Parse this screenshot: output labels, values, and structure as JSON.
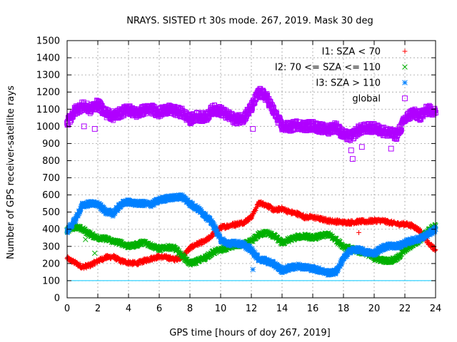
{
  "chart_data": {
    "type": "scatter",
    "title": "NRAYS. SISTED rt 30s mode. 267, 2019. Mask 30 deg",
    "xlabel": "GPS time [hours of doy 267, 2019]",
    "ylabel": "Number of GPS receiver-satellite rays",
    "xlim": [
      0,
      24
    ],
    "ylim": [
      0,
      1500
    ],
    "xticks": [
      0,
      2,
      4,
      6,
      8,
      10,
      12,
      14,
      16,
      18,
      20,
      22,
      24
    ],
    "yticks": [
      0,
      100,
      200,
      300,
      400,
      500,
      600,
      700,
      800,
      900,
      1000,
      1100,
      1200,
      1300,
      1400,
      1500
    ],
    "grid": true,
    "legend_position": "top-right",
    "reference_line": {
      "y": 100,
      "color": "#00c8ff"
    },
    "series": [
      {
        "name": "I1: SZA < 70",
        "marker": "plus",
        "color": "#ff0000",
        "x": [
          0,
          0.5,
          1,
          1.5,
          2,
          2.5,
          3,
          3.5,
          4,
          4.5,
          5,
          5.5,
          6,
          6.5,
          7,
          7.5,
          8,
          8.5,
          9,
          9.5,
          10,
          10.5,
          11,
          11.5,
          12,
          12.5,
          13,
          13.5,
          14,
          14.5,
          15,
          15.5,
          16,
          16.5,
          17,
          17.5,
          18,
          18.5,
          19,
          19.5,
          20,
          20.5,
          21,
          21.5,
          22,
          22.5,
          23,
          23.5,
          24
        ],
        "y": [
          230,
          205,
          180,
          190,
          215,
          235,
          240,
          215,
          205,
          200,
          215,
          230,
          240,
          235,
          225,
          240,
          290,
          315,
          330,
          370,
          410,
          420,
          430,
          440,
          470,
          555,
          540,
          510,
          520,
          500,
          490,
          470,
          470,
          460,
          450,
          445,
          440,
          440,
          445,
          445,
          450,
          450,
          440,
          430,
          430,
          420,
          390,
          320,
          280
        ]
      },
      {
        "name": "I2: 70 <= SZA <= 110",
        "marker": "cross",
        "color": "#00b000",
        "x": [
          0,
          0.5,
          1,
          1.5,
          2,
          2.5,
          3,
          3.5,
          4,
          4.5,
          5,
          5.5,
          6,
          6.5,
          7,
          7.5,
          8,
          8.5,
          9,
          9.5,
          10,
          10.5,
          11,
          11.5,
          12,
          12.5,
          13,
          13.5,
          14,
          14.5,
          15,
          15.5,
          16,
          16.5,
          17,
          17.5,
          18,
          18.5,
          19,
          19.5,
          20,
          20.5,
          21,
          21.5,
          22,
          22.5,
          23,
          23.5,
          24
        ],
        "y": [
          395,
          415,
          400,
          370,
          350,
          345,
          330,
          320,
          300,
          310,
          325,
          305,
          285,
          295,
          290,
          245,
          200,
          215,
          235,
          265,
          280,
          295,
          305,
          310,
          330,
          370,
          380,
          360,
          320,
          340,
          355,
          360,
          350,
          360,
          370,
          340,
          300,
          285,
          270,
          260,
          230,
          220,
          215,
          230,
          280,
          310,
          340,
          390,
          420
        ]
      },
      {
        "name": "I3: SZA > 110",
        "marker": "star",
        "color": "#0080ff",
        "x": [
          0,
          0.5,
          1,
          1.5,
          2,
          2.5,
          3,
          3.5,
          4,
          4.5,
          5,
          5.5,
          6,
          6.5,
          7,
          7.5,
          8,
          8.5,
          9,
          9.5,
          10,
          10.5,
          11,
          11.5,
          12,
          12.5,
          13,
          13.5,
          14,
          14.5,
          15,
          15.5,
          16,
          16.5,
          17,
          17.5,
          18,
          18.5,
          19,
          19.5,
          20,
          20.5,
          21,
          21.5,
          22,
          22.5,
          23,
          23.5,
          24
        ],
        "y": [
          390,
          450,
          540,
          550,
          545,
          505,
          490,
          545,
          560,
          550,
          550,
          545,
          570,
          580,
          585,
          590,
          550,
          520,
          480,
          430,
          340,
          315,
          320,
          310,
          280,
          225,
          215,
          195,
          160,
          175,
          185,
          180,
          170,
          160,
          145,
          150,
          230,
          280,
          280,
          265,
          260,
          290,
          305,
          300,
          320,
          335,
          345,
          370,
          400
        ]
      },
      {
        "name": "global",
        "marker": "square",
        "color": "#b000ff",
        "x": [
          0,
          0.5,
          1,
          1.5,
          2,
          2.5,
          3,
          3.5,
          4,
          4.5,
          5,
          5.5,
          6,
          6.5,
          7,
          7.5,
          8,
          8.5,
          9,
          9.5,
          10,
          10.5,
          11,
          11.5,
          12,
          12.5,
          13,
          13.5,
          14,
          14.5,
          15,
          15.5,
          16,
          16.5,
          17,
          17.5,
          18,
          18.5,
          19,
          19.5,
          20,
          20.5,
          21,
          21.5,
          22,
          22.5,
          23,
          23.5,
          24
        ],
        "y": [
          1020,
          1090,
          1120,
          1100,
          1130,
          1080,
          1060,
          1080,
          1100,
          1075,
          1095,
          1100,
          1080,
          1100,
          1090,
          1080,
          1040,
          1060,
          1050,
          1100,
          1090,
          1060,
          1040,
          1050,
          1110,
          1200,
          1170,
          1080,
          1000,
          995,
          1010,
          1000,
          1005,
          990,
          980,
          1000,
          950,
          940,
          980,
          990,
          990,
          975,
          960,
          950,
          1040,
          1080,
          1060,
          1100,
          1080
        ]
      }
    ],
    "outliers": [
      {
        "series": "I1: SZA < 70",
        "x": 19.0,
        "y": 380
      },
      {
        "series": "I2: 70 <= SZA <= 110",
        "x": 1.8,
        "y": 260
      },
      {
        "series": "I2: 70 <= SZA <= 110",
        "x": 1.2,
        "y": 340
      },
      {
        "series": "I3: SZA > 110",
        "x": 12.1,
        "y": 165
      },
      {
        "series": "global",
        "x": 1.1,
        "y": 1000
      },
      {
        "series": "global",
        "x": 1.8,
        "y": 985
      },
      {
        "series": "global",
        "x": 12.1,
        "y": 985
      },
      {
        "series": "global",
        "x": 18.5,
        "y": 860
      },
      {
        "series": "global",
        "x": 18.6,
        "y": 810
      },
      {
        "series": "global",
        "x": 19.2,
        "y": 880
      },
      {
        "series": "global",
        "x": 21.1,
        "y": 870
      }
    ]
  }
}
